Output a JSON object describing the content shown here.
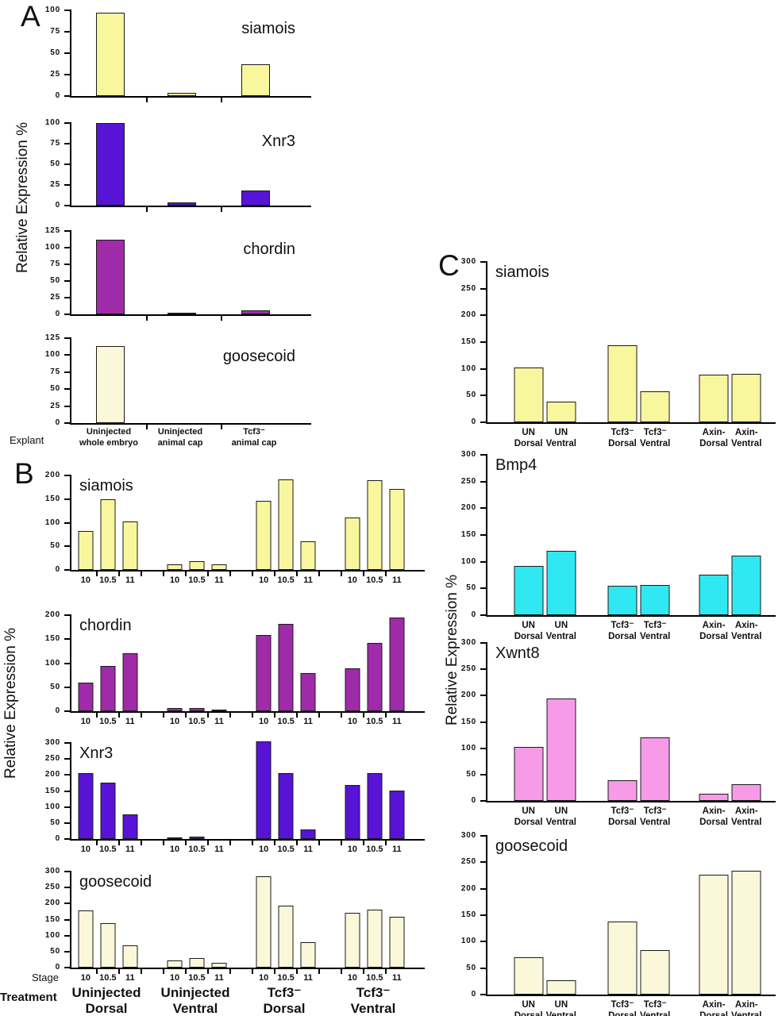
{
  "figure": {
    "explant_label": "Explant",
    "stage_label": "Stage",
    "treatment_label": "Treatment"
  },
  "chart_data": {
    "type": "bar",
    "ylabel": "Relative Expression %",
    "panels": {
      "A": {
        "letter": "A",
        "ylabel": "Relative Expression %",
        "xlabel": "Explant",
        "categories": [
          "Uninjected\nwhole embryo",
          "Uninjected\nanimal cap",
          "Tcf3⁻\nanimal cap"
        ],
        "charts": [
          {
            "title": "siamois",
            "ymax": 100,
            "yticks": [
              0,
              25,
              50,
              75,
              100
            ],
            "color": "#f8f79e",
            "values": [
              97,
              4,
              37
            ]
          },
          {
            "title": "Xnr3",
            "ymax": 100,
            "yticks": [
              0,
              25,
              50,
              75,
              100
            ],
            "color": "#5713d6",
            "values": [
              100,
              4,
              18
            ]
          },
          {
            "title": "chordin",
            "ymax": 125,
            "yticks": [
              0,
              25,
              50,
              75,
              100,
              125
            ],
            "color": "#a02ba8",
            "values": [
              112,
              2,
              6
            ]
          },
          {
            "title": "goosecoid",
            "ymax": 125,
            "yticks": [
              0,
              25,
              50,
              75,
              100,
              125
            ],
            "color": "#faf8d8",
            "values": [
              113,
              0,
              0
            ]
          }
        ]
      },
      "B": {
        "letter": "B",
        "ylabel": "Relative Expression %",
        "stages": [
          "10",
          "10.5",
          "11"
        ],
        "treatments": [
          "Uninjected\nDorsal",
          "Uninjected\nVentral",
          "Tcf3⁻\nDorsal",
          "Tcf3⁻\nVentral"
        ],
        "charts": [
          {
            "title": "siamois",
            "ymax": 200,
            "yticks": [
              0,
              50,
              100,
              150,
              200
            ],
            "color": "#f8f79e",
            "groups": [
              [
                82,
                150,
                103
              ],
              [
                12,
                19,
                12
              ],
              [
                147,
                191,
                60
              ],
              [
                111,
                190,
                172
              ]
            ]
          },
          {
            "title": "chordin",
            "ymax": 200,
            "yticks": [
              0,
              50,
              100,
              150,
              200
            ],
            "color": "#a02ba8",
            "groups": [
              [
                60,
                94,
                120
              ],
              [
                6,
                6,
                2
              ],
              [
                158,
                182,
                79
              ],
              [
                90,
                143,
                195
              ]
            ]
          },
          {
            "title": "Xnr3",
            "ymax": 300,
            "yticks": [
              0,
              50,
              100,
              150,
              200,
              250,
              300
            ],
            "color": "#5713d6",
            "groups": [
              [
                207,
                176,
                78
              ],
              [
                3,
                7,
                0
              ],
              [
                305,
                207,
                31
              ],
              [
                168,
                207,
                151
              ]
            ]
          },
          {
            "title": "goosecoid",
            "ymax": 300,
            "yticks": [
              0,
              50,
              100,
              150,
              200,
              250,
              300
            ],
            "color": "#faf8d8",
            "groups": [
              [
                179,
                139,
                70
              ],
              [
                22,
                31,
                14
              ],
              [
                284,
                193,
                80
              ],
              [
                170,
                181,
                159
              ]
            ]
          }
        ]
      },
      "C": {
        "letter": "C",
        "ylabel": "Relative Expression %",
        "categories": [
          "UN\nDorsal",
          "UN\nVentral",
          "Tcf3⁻\nDorsal",
          "Tcf3⁻\nVentral",
          "Axin-\nDorsal",
          "Axin-\nVentral"
        ],
        "charts": [
          {
            "title": "siamois",
            "ymax": 300,
            "yticks": [
              0,
              50,
              100,
              150,
              200,
              250,
              300
            ],
            "color": "#f8f79e",
            "groups": [
              [
                103,
                39
              ],
              [
                144,
                58
              ],
              [
                89,
                91
              ]
            ]
          },
          {
            "title": "Bmp4",
            "ymax": 300,
            "yticks": [
              0,
              50,
              100,
              150,
              200,
              250,
              300
            ],
            "color": "#2fe8f1",
            "groups": [
              [
                92,
                121
              ],
              [
                55,
                57
              ],
              [
                76,
                111
              ]
            ]
          },
          {
            "title": "Xwnt8",
            "ymax": 300,
            "yticks": [
              0,
              50,
              100,
              150,
              200,
              250,
              300
            ],
            "color": "#f79ae8",
            "groups": [
              [
                103,
                195
              ],
              [
                39,
                121
              ],
              [
                14,
                31
              ]
            ]
          },
          {
            "title": "goosecoid",
            "ymax": 300,
            "yticks": [
              0,
              50,
              100,
              150,
              200,
              250,
              300
            ],
            "color": "#faf8d8",
            "groups": [
              [
                70,
                27
              ],
              [
                138,
                84
              ],
              [
                226,
                234
              ]
            ]
          }
        ]
      }
    }
  }
}
